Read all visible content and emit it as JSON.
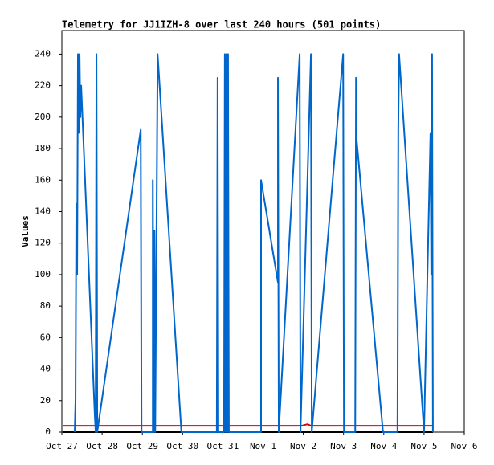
{
  "chart_data": {
    "type": "line",
    "title": "Telemetry for JJ1IZH-8 over last 240 hours (501 points)",
    "y_label": "Values",
    "xlim": [
      0,
      10
    ],
    "xticks": [
      {
        "value": 0,
        "label": "Oct 27"
      },
      {
        "value": 1,
        "label": "Oct 28"
      },
      {
        "value": 2,
        "label": "Oct 29"
      },
      {
        "value": 3,
        "label": "Oct 30"
      },
      {
        "value": 4,
        "label": "Oct 31"
      },
      {
        "value": 5,
        "label": "Nov 1"
      },
      {
        "value": 6,
        "label": "Nov 2"
      },
      {
        "value": 7,
        "label": "Nov 3"
      },
      {
        "value": 8,
        "label": "Nov 4"
      },
      {
        "value": 9,
        "label": "Nov 5"
      },
      {
        "value": 10,
        "label": "Nov 6"
      }
    ],
    "ylim": [
      0,
      255
    ],
    "yticks": [
      0,
      20,
      40,
      60,
      80,
      100,
      120,
      140,
      160,
      180,
      200,
      220,
      240
    ],
    "series": [
      {
        "color": "#0066cc",
        "x": [
          0.32,
          0.34,
          0.36,
          0.38,
          0.4,
          0.42,
          0.44,
          0.46,
          0.48,
          0.82,
          0.84,
          0.86,
          0.88,
          1.96,
          1.98,
          2.26,
          2.26,
          2.28,
          2.3,
          2.32,
          2.38,
          2.97,
          3.85,
          3.87,
          3.89,
          4.03,
          4.05,
          4.07,
          4.09,
          4.11,
          4.13,
          4.13,
          4.15,
          4.95,
          4.95,
          5.37,
          5.37,
          5.39,
          5.91,
          5.93,
          6.19,
          6.21,
          6.99,
          7.01,
          7.29,
          7.31,
          7.31,
          7.98,
          8.34,
          8.36,
          8.38,
          9.0,
          9.16,
          9.18,
          9.2,
          9.22
        ],
        "values": [
          0,
          20,
          145,
          100,
          240,
          190,
          240,
          200,
          220,
          10,
          0,
          240,
          0,
          192,
          0,
          0,
          160,
          0,
          128,
          0,
          240,
          0,
          0,
          225,
          0,
          0,
          240,
          0,
          240,
          0,
          72,
          240,
          0,
          0,
          160,
          95,
          225,
          0,
          240,
          0,
          240,
          0,
          240,
          0,
          0,
          225,
          190,
          0,
          0,
          192,
          240,
          0,
          190,
          100,
          240,
          0
        ]
      },
      {
        "color": "#dd0000",
        "x": [
          0.02,
          5.95,
          6.1,
          6.2,
          9.22
        ],
        "values": [
          4,
          4,
          5,
          4,
          4
        ]
      },
      {
        "color": "#000000",
        "x": [
          0.02,
          9.22
        ],
        "values": [
          0,
          0
        ]
      }
    ]
  }
}
